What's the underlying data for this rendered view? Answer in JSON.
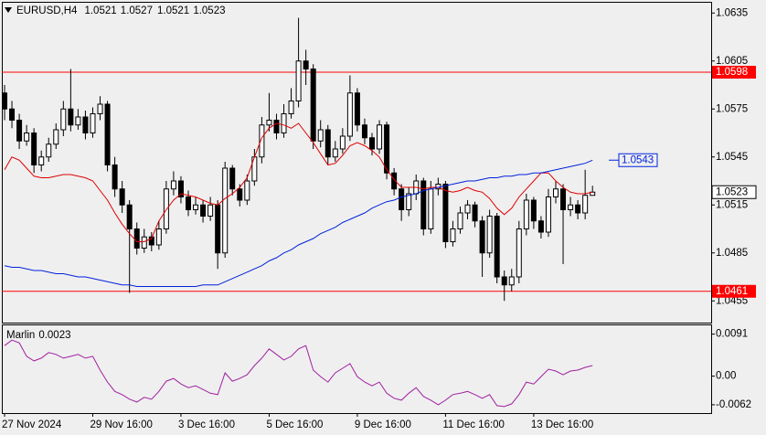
{
  "chart_data": {
    "type": "candlestick",
    "symbol": "EURUSD,H4",
    "categories": [
      "27 Nov 2024",
      null,
      null,
      null,
      null,
      null,
      null,
      null,
      null,
      null,
      null,
      null,
      "29 Nov 16:00",
      null,
      null,
      null,
      null,
      null,
      null,
      null,
      null,
      null,
      null,
      null,
      "3 Dec 16:00",
      null,
      null,
      null,
      null,
      null,
      null,
      null,
      null,
      null,
      null,
      null,
      "5 Dec 16:00",
      null,
      null,
      null,
      null,
      null,
      null,
      null,
      null,
      null,
      null,
      null,
      "9 Dec 16:00",
      null,
      null,
      null,
      null,
      null,
      null,
      null,
      null,
      null,
      null,
      null,
      "11 Dec 16:00",
      null,
      null,
      null,
      null,
      null,
      null,
      null,
      null,
      null,
      null,
      null,
      "13 Dec 16:00",
      null,
      null,
      null,
      null,
      null,
      null,
      null,
      null
    ],
    "open": [
      1.0585,
      1.0575,
      1.0568,
      1.0555,
      1.056,
      1.054,
      1.0545,
      1.0553,
      1.0562,
      1.0575,
      1.0565,
      1.057,
      1.056,
      1.0572,
      1.0578,
      1.054,
      1.0525,
      1.0515,
      1.05,
      1.0488,
      1.0495,
      1.049,
      1.05,
      1.0525,
      1.053,
      1.052,
      1.0512,
      1.0515,
      1.0508,
      1.0515,
      1.0485,
      1.0538,
      1.0525,
      1.0518,
      1.053,
      1.0545,
      1.0565,
      1.0568,
      1.056,
      1.0572,
      1.058,
      1.0605,
      1.06,
      1.0555,
      1.0562,
      1.0545,
      1.055,
      1.0558,
      1.0585,
      1.0565,
      1.0557,
      1.055,
      1.0565,
      1.0535,
      1.0525,
      1.0512,
      1.0522,
      1.053,
      1.05,
      1.0525,
      1.0528,
      1.0492,
      1.05,
      1.051,
      1.0515,
      1.0505,
      1.0485,
      1.0508,
      1.047,
      1.0465,
      1.047,
      1.05,
      1.0518,
      1.0505,
      1.0498,
      1.052,
      1.0525,
      1.0512,
      1.0515,
      1.051,
      1.0521
    ],
    "high": [
      1.059,
      1.058,
      1.0572,
      1.0565,
      1.0563,
      1.0549,
      1.0557,
      1.0566,
      1.058,
      1.06,
      1.0575,
      1.0574,
      1.0576,
      1.0583,
      1.058,
      1.0545,
      1.053,
      1.0518,
      1.0504,
      1.05,
      1.0498,
      1.0505,
      1.053,
      1.0536,
      1.0533,
      1.0524,
      1.052,
      1.0518,
      1.052,
      1.0518,
      1.0542,
      1.054,
      1.0528,
      1.0534,
      1.055,
      1.057,
      1.0585,
      1.0572,
      1.0578,
      1.0588,
      1.0632,
      1.0612,
      1.0603,
      1.0568,
      1.0565,
      1.0555,
      1.0563,
      1.0596,
      1.0588,
      1.0569,
      1.056,
      1.0568,
      1.0567,
      1.0538,
      1.0528,
      1.0526,
      1.0534,
      1.0532,
      1.053,
      1.0532,
      1.053,
      1.0505,
      1.0514,
      1.0518,
      1.0517,
      1.0508,
      1.0512,
      1.051,
      1.0474,
      1.0475,
      1.0505,
      1.0522,
      1.052,
      1.0508,
      1.0525,
      1.053,
      1.0528,
      1.052,
      1.0518,
      1.0537,
      1.0527
    ],
    "low": [
      1.0568,
      1.0563,
      1.055,
      1.0552,
      1.0535,
      1.0536,
      1.0542,
      1.055,
      1.0558,
      1.0561,
      1.0562,
      1.0556,
      1.0557,
      1.0568,
      1.0536,
      1.052,
      1.051,
      1.046,
      1.0484,
      1.0485,
      1.0486,
      1.0487,
      1.0497,
      1.0521,
      1.0516,
      1.0508,
      1.0509,
      1.0504,
      1.0505,
      1.0475,
      1.0482,
      1.0521,
      1.0514,
      1.0515,
      1.0527,
      1.0541,
      1.0561,
      1.0556,
      1.0557,
      1.0569,
      1.0576,
      1.059,
      1.055,
      1.0551,
      1.054,
      1.0542,
      1.0547,
      1.0555,
      1.0561,
      1.0553,
      1.0546,
      1.0547,
      1.0531,
      1.0521,
      1.0505,
      1.0508,
      1.0518,
      1.0496,
      1.0497,
      1.0521,
      1.0488,
      1.0489,
      1.0497,
      1.0506,
      1.0501,
      1.047,
      1.0482,
      1.0466,
      1.0455,
      1.0461,
      1.0466,
      1.0496,
      1.05,
      1.0494,
      1.0495,
      1.0516,
      1.0478,
      1.0508,
      1.0506,
      1.0506,
      1.0521
    ],
    "close": [
      1.0575,
      1.0568,
      1.0555,
      1.056,
      1.054,
      1.0545,
      1.0553,
      1.0562,
      1.0575,
      1.0565,
      1.057,
      1.056,
      1.0572,
      1.0578,
      1.054,
      1.0525,
      1.0515,
      1.05,
      1.0488,
      1.0495,
      1.049,
      1.05,
      1.0525,
      1.053,
      1.052,
      1.0512,
      1.0515,
      1.0508,
      1.0515,
      1.0485,
      1.0538,
      1.0525,
      1.0518,
      1.053,
      1.0545,
      1.0565,
      1.0568,
      1.056,
      1.0572,
      1.058,
      1.0605,
      1.06,
      1.0555,
      1.0562,
      1.0545,
      1.055,
      1.0558,
      1.0585,
      1.0565,
      1.0557,
      1.055,
      1.0565,
      1.0535,
      1.0525,
      1.0512,
      1.0522,
      1.053,
      1.05,
      1.0525,
      1.0528,
      1.0492,
      1.05,
      1.051,
      1.0515,
      1.0505,
      1.0485,
      1.0508,
      1.047,
      1.0465,
      1.047,
      1.05,
      1.0518,
      1.0505,
      1.0498,
      1.052,
      1.0525,
      1.0512,
      1.0515,
      1.051,
      1.0521,
      1.0523
    ],
    "series": [
      {
        "color": "#e00000",
        "values": [
          1.0537,
          1.0545,
          1.0543,
          1.0538,
          1.0533,
          1.0532,
          1.0532,
          1.0533,
          1.0534,
          1.0534,
          1.0533,
          1.0532,
          1.053,
          1.0524,
          1.0518,
          1.051,
          1.0503,
          1.0497,
          1.0492,
          1.0492,
          1.0494,
          1.0505,
          1.0512,
          1.0518,
          1.0522,
          1.0521,
          1.052,
          1.0518,
          1.0516,
          1.0515,
          1.0519,
          1.0522,
          1.0526,
          1.0532,
          1.0545,
          1.0557,
          1.0563,
          1.0566,
          1.0565,
          1.0563,
          1.0566,
          1.056,
          1.0554,
          1.0547,
          1.054,
          1.0541,
          1.0546,
          1.0552,
          1.0554,
          1.0552,
          1.0549,
          1.0545,
          1.0537,
          1.0531,
          1.0526,
          1.0526,
          1.0526,
          1.0525,
          1.0526,
          1.0526,
          1.0524,
          1.0523,
          1.0524,
          1.0526,
          1.0524,
          1.0523,
          1.0519,
          1.0513,
          1.0509,
          1.0513,
          1.052,
          1.0525,
          1.053,
          1.0535,
          1.0535,
          1.053,
          1.0526,
          1.0523,
          1.0522,
          1.0522,
          1.0523
        ]
      },
      {
        "color": "#0022dd",
        "values": [
          1.0477,
          1.0476,
          1.0476,
          1.0475,
          1.0474,
          1.0474,
          1.0473,
          1.0472,
          1.0472,
          1.0471,
          1.047,
          1.047,
          1.0469,
          1.0468,
          1.0467,
          1.0466,
          1.0465,
          1.0465,
          1.0464,
          1.0464,
          1.0464,
          1.0464,
          1.0464,
          1.0464,
          1.0464,
          1.0464,
          1.0464,
          1.0465,
          1.0465,
          1.0465,
          1.0467,
          1.0469,
          1.0471,
          1.0473,
          1.0475,
          1.0477,
          1.048,
          1.0482,
          1.0485,
          1.0487,
          1.049,
          1.0492,
          1.0494,
          1.0497,
          1.0499,
          1.0501,
          1.0504,
          1.0506,
          1.0508,
          1.051,
          1.0513,
          1.0515,
          1.0517,
          1.0518,
          1.052,
          1.0521,
          1.0522,
          1.0524,
          1.0525,
          1.0526,
          1.0527,
          1.0528,
          1.0529,
          1.053,
          1.053,
          1.0531,
          1.0532,
          1.0532,
          1.0533,
          1.0533,
          1.0534,
          1.0534,
          1.0535,
          1.0535,
          1.0536,
          1.0537,
          1.0538,
          1.0539,
          1.054,
          1.0541,
          1.0543
        ]
      }
    ],
    "levels": [
      {
        "value": 1.0598,
        "color": "#ff0000"
      },
      {
        "value": 1.0461,
        "color": "#ff0000"
      }
    ],
    "ylim": [
      1.0442,
      1.0642
    ],
    "yticks": [
      1.0635,
      1.0605,
      1.0575,
      1.0545,
      1.0515,
      1.0485,
      1.0455
    ],
    "indicator": {
      "type": "line",
      "name": "Marlin",
      "color": "#a020a0",
      "values": [
        0.0066,
        0.0078,
        0.0072,
        0.0043,
        0.0033,
        0.0039,
        0.0051,
        0.0047,
        0.0039,
        0.0043,
        0.0047,
        0.0039,
        0.0043,
        0.0013,
        -0.0013,
        -0.0033,
        -0.004,
        -0.005,
        -0.0056,
        -0.0046,
        -0.005,
        -0.0033,
        -0.0011,
        -0.0005,
        -0.0017,
        -0.0025,
        -0.0021,
        -0.0029,
        -0.0037,
        -0.004,
        0.0007,
        -0.0011,
        -0.0005,
        0.0003,
        0.0023,
        0.0039,
        0.0059,
        0.0047,
        0.0035,
        0.0043,
        0.0059,
        0.0066,
        0.0013,
        -0.0001,
        -0.0013,
        0.0007,
        0.0017,
        0.0027,
        -0.0001,
        -0.0013,
        -0.0021,
        -0.0013,
        -0.0037,
        -0.0048,
        -0.0052,
        -0.0037,
        -0.0025,
        -0.0044,
        -0.0052,
        -0.0062,
        -0.0052,
        -0.004,
        -0.0037,
        -0.0033,
        -0.004,
        -0.0048,
        -0.004,
        -0.0064,
        -0.0066,
        -0.006,
        -0.004,
        -0.0013,
        -0.0017,
        -0.0001,
        0.0015,
        0.0011,
        0.0003,
        0.0011,
        0.0013,
        0.0019,
        0.0023
      ],
      "ylim": [
        -0.008,
        0.011
      ],
      "yticks": [
        0.0091,
        {
          "value": 0,
          "label": "0.00"
        },
        -0.0062
      ]
    }
  }
}
